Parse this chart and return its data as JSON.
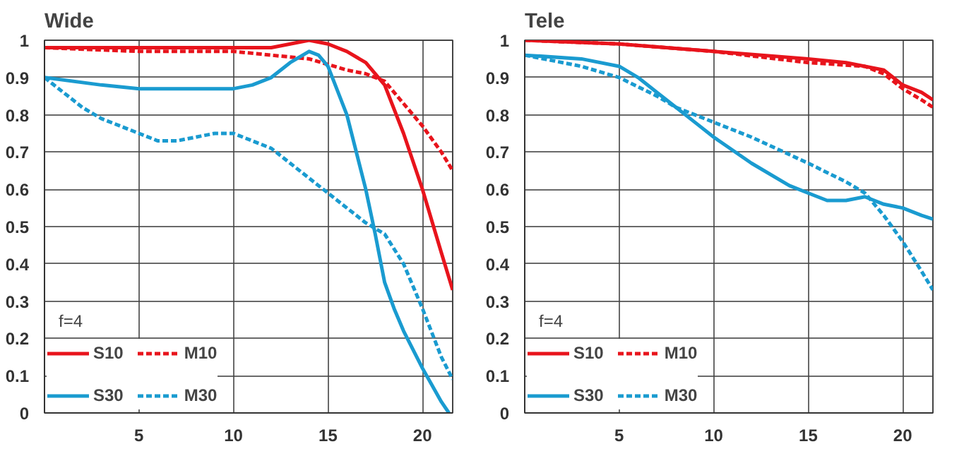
{
  "chart_data": [
    {
      "type": "line",
      "title": "Wide",
      "xlim": [
        0,
        21.6
      ],
      "xticks": [
        5,
        10,
        15,
        20
      ],
      "ylim": [
        0,
        1
      ],
      "yticks": [
        0,
        0.1,
        0.2,
        0.3,
        0.4,
        0.5,
        0.6,
        0.7,
        0.8,
        0.9,
        1
      ],
      "grid": true,
      "legend": "bottom left",
      "annotations": [
        "f=4"
      ],
      "series": [
        {
          "name": "S10",
          "color": "#e8141c",
          "line_style": "solid",
          "x": [
            0,
            5,
            10,
            12,
            14,
            15,
            16,
            17,
            18,
            19,
            20,
            21,
            21.6
          ],
          "values": [
            0.98,
            0.98,
            0.98,
            0.98,
            1.0,
            0.99,
            0.97,
            0.94,
            0.88,
            0.75,
            0.6,
            0.43,
            0.33
          ]
        },
        {
          "name": "M10",
          "color": "#e8141c",
          "line_style": "dashed",
          "x": [
            0,
            5,
            10,
            12,
            14,
            16,
            17,
            18,
            19,
            20,
            21,
            21.6
          ],
          "values": [
            0.98,
            0.97,
            0.97,
            0.96,
            0.95,
            0.92,
            0.91,
            0.89,
            0.83,
            0.77,
            0.7,
            0.65
          ]
        },
        {
          "name": "S30",
          "color": "#1a9bd0",
          "line_style": "solid",
          "x": [
            0,
            3,
            5,
            7,
            10,
            11,
            12,
            13,
            14,
            14.5,
            15,
            16,
            17,
            17.5,
            18,
            18.5,
            19,
            20,
            21,
            21.4
          ],
          "values": [
            0.9,
            0.88,
            0.87,
            0.87,
            0.87,
            0.88,
            0.9,
            0.94,
            0.97,
            0.96,
            0.93,
            0.8,
            0.6,
            0.48,
            0.35,
            0.28,
            0.22,
            0.12,
            0.03,
            0.0
          ]
        },
        {
          "name": "M30",
          "color": "#1a9bd0",
          "line_style": "dashed",
          "x": [
            0,
            1,
            2,
            3,
            4,
            5,
            6,
            7,
            8,
            9,
            10,
            11,
            12,
            13,
            14,
            15,
            16,
            17,
            18,
            19,
            20,
            21,
            21.6
          ],
          "values": [
            0.9,
            0.86,
            0.82,
            0.79,
            0.77,
            0.75,
            0.73,
            0.73,
            0.74,
            0.75,
            0.75,
            0.73,
            0.71,
            0.67,
            0.63,
            0.59,
            0.55,
            0.51,
            0.48,
            0.4,
            0.28,
            0.15,
            0.09
          ]
        }
      ]
    },
    {
      "type": "line",
      "title": "Tele",
      "xlim": [
        0,
        21.6
      ],
      "xticks": [
        5,
        10,
        15,
        20
      ],
      "ylim": [
        0,
        1
      ],
      "yticks": [
        0,
        0.1,
        0.2,
        0.3,
        0.4,
        0.5,
        0.6,
        0.7,
        0.8,
        0.9,
        1
      ],
      "grid": true,
      "legend": "bottom left",
      "annotations": [
        "f=4"
      ],
      "series": [
        {
          "name": "S10",
          "color": "#e8141c",
          "line_style": "solid",
          "x": [
            0,
            5,
            10,
            15,
            17,
            18,
            19,
            20,
            21,
            21.6
          ],
          "values": [
            1,
            0.99,
            0.97,
            0.95,
            0.94,
            0.93,
            0.92,
            0.88,
            0.86,
            0.84
          ]
        },
        {
          "name": "M10",
          "color": "#e8141c",
          "line_style": "dashed",
          "x": [
            0,
            5,
            10,
            15,
            18,
            19,
            20,
            21,
            21.6
          ],
          "values": [
            1,
            0.99,
            0.97,
            0.94,
            0.93,
            0.91,
            0.87,
            0.84,
            0.82
          ]
        },
        {
          "name": "S30",
          "color": "#1a9bd0",
          "line_style": "solid",
          "x": [
            0,
            3,
            5,
            6,
            7,
            8,
            9,
            10,
            12,
            14,
            15,
            16,
            17,
            18,
            19,
            20,
            21,
            21.6
          ],
          "values": [
            0.96,
            0.95,
            0.93,
            0.9,
            0.86,
            0.82,
            0.78,
            0.74,
            0.67,
            0.61,
            0.59,
            0.57,
            0.57,
            0.58,
            0.56,
            0.55,
            0.53,
            0.52
          ]
        },
        {
          "name": "M30",
          "color": "#1a9bd0",
          "line_style": "dashed",
          "x": [
            0,
            3,
            5,
            7,
            8,
            10,
            12,
            15,
            17,
            18,
            19,
            20,
            21,
            21.6
          ],
          "values": [
            0.96,
            0.93,
            0.9,
            0.85,
            0.82,
            0.78,
            0.74,
            0.67,
            0.62,
            0.59,
            0.53,
            0.46,
            0.38,
            0.33
          ]
        }
      ]
    }
  ]
}
